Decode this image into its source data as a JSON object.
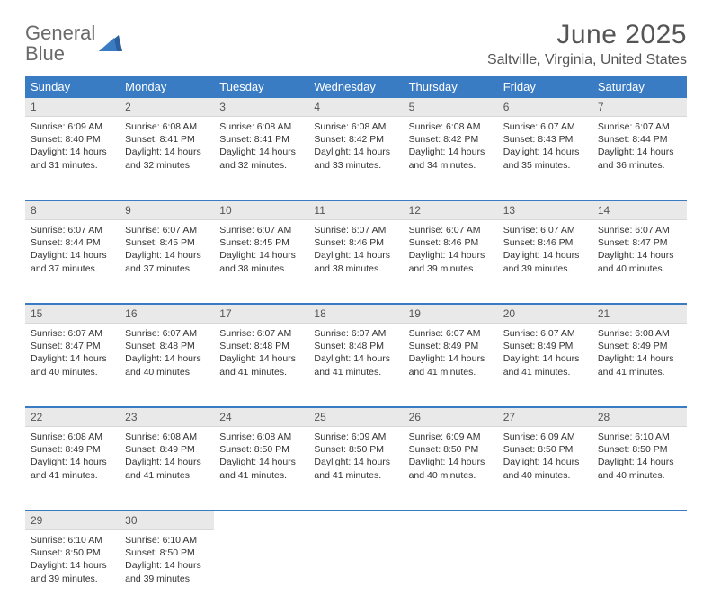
{
  "logo": {
    "word1": "General",
    "word2": "Blue"
  },
  "title": "June 2025",
  "location": "Saltville, Virginia, United States",
  "colors": {
    "accent": "#3a7cc4",
    "daynum_bg": "#e9e9e9",
    "text": "#333333",
    "muted": "#555555"
  },
  "weekdays": [
    "Sunday",
    "Monday",
    "Tuesday",
    "Wednesday",
    "Thursday",
    "Friday",
    "Saturday"
  ],
  "weeks": [
    [
      {
        "n": "1",
        "sr": "6:09 AM",
        "ss": "8:40 PM",
        "dl": "14 hours and 31 minutes."
      },
      {
        "n": "2",
        "sr": "6:08 AM",
        "ss": "8:41 PM",
        "dl": "14 hours and 32 minutes."
      },
      {
        "n": "3",
        "sr": "6:08 AM",
        "ss": "8:41 PM",
        "dl": "14 hours and 32 minutes."
      },
      {
        "n": "4",
        "sr": "6:08 AM",
        "ss": "8:42 PM",
        "dl": "14 hours and 33 minutes."
      },
      {
        "n": "5",
        "sr": "6:08 AM",
        "ss": "8:42 PM",
        "dl": "14 hours and 34 minutes."
      },
      {
        "n": "6",
        "sr": "6:07 AM",
        "ss": "8:43 PM",
        "dl": "14 hours and 35 minutes."
      },
      {
        "n": "7",
        "sr": "6:07 AM",
        "ss": "8:44 PM",
        "dl": "14 hours and 36 minutes."
      }
    ],
    [
      {
        "n": "8",
        "sr": "6:07 AM",
        "ss": "8:44 PM",
        "dl": "14 hours and 37 minutes."
      },
      {
        "n": "9",
        "sr": "6:07 AM",
        "ss": "8:45 PM",
        "dl": "14 hours and 37 minutes."
      },
      {
        "n": "10",
        "sr": "6:07 AM",
        "ss": "8:45 PM",
        "dl": "14 hours and 38 minutes."
      },
      {
        "n": "11",
        "sr": "6:07 AM",
        "ss": "8:46 PM",
        "dl": "14 hours and 38 minutes."
      },
      {
        "n": "12",
        "sr": "6:07 AM",
        "ss": "8:46 PM",
        "dl": "14 hours and 39 minutes."
      },
      {
        "n": "13",
        "sr": "6:07 AM",
        "ss": "8:46 PM",
        "dl": "14 hours and 39 minutes."
      },
      {
        "n": "14",
        "sr": "6:07 AM",
        "ss": "8:47 PM",
        "dl": "14 hours and 40 minutes."
      }
    ],
    [
      {
        "n": "15",
        "sr": "6:07 AM",
        "ss": "8:47 PM",
        "dl": "14 hours and 40 minutes."
      },
      {
        "n": "16",
        "sr": "6:07 AM",
        "ss": "8:48 PM",
        "dl": "14 hours and 40 minutes."
      },
      {
        "n": "17",
        "sr": "6:07 AM",
        "ss": "8:48 PM",
        "dl": "14 hours and 41 minutes."
      },
      {
        "n": "18",
        "sr": "6:07 AM",
        "ss": "8:48 PM",
        "dl": "14 hours and 41 minutes."
      },
      {
        "n": "19",
        "sr": "6:07 AM",
        "ss": "8:49 PM",
        "dl": "14 hours and 41 minutes."
      },
      {
        "n": "20",
        "sr": "6:07 AM",
        "ss": "8:49 PM",
        "dl": "14 hours and 41 minutes."
      },
      {
        "n": "21",
        "sr": "6:08 AM",
        "ss": "8:49 PM",
        "dl": "14 hours and 41 minutes."
      }
    ],
    [
      {
        "n": "22",
        "sr": "6:08 AM",
        "ss": "8:49 PM",
        "dl": "14 hours and 41 minutes."
      },
      {
        "n": "23",
        "sr": "6:08 AM",
        "ss": "8:49 PM",
        "dl": "14 hours and 41 minutes."
      },
      {
        "n": "24",
        "sr": "6:08 AM",
        "ss": "8:50 PM",
        "dl": "14 hours and 41 minutes."
      },
      {
        "n": "25",
        "sr": "6:09 AM",
        "ss": "8:50 PM",
        "dl": "14 hours and 41 minutes."
      },
      {
        "n": "26",
        "sr": "6:09 AM",
        "ss": "8:50 PM",
        "dl": "14 hours and 40 minutes."
      },
      {
        "n": "27",
        "sr": "6:09 AM",
        "ss": "8:50 PM",
        "dl": "14 hours and 40 minutes."
      },
      {
        "n": "28",
        "sr": "6:10 AM",
        "ss": "8:50 PM",
        "dl": "14 hours and 40 minutes."
      }
    ],
    [
      {
        "n": "29",
        "sr": "6:10 AM",
        "ss": "8:50 PM",
        "dl": "14 hours and 39 minutes."
      },
      {
        "n": "30",
        "sr": "6:10 AM",
        "ss": "8:50 PM",
        "dl": "14 hours and 39 minutes."
      },
      null,
      null,
      null,
      null,
      null
    ]
  ],
  "labels": {
    "sunrise": "Sunrise:",
    "sunset": "Sunset:",
    "daylight": "Daylight:"
  }
}
